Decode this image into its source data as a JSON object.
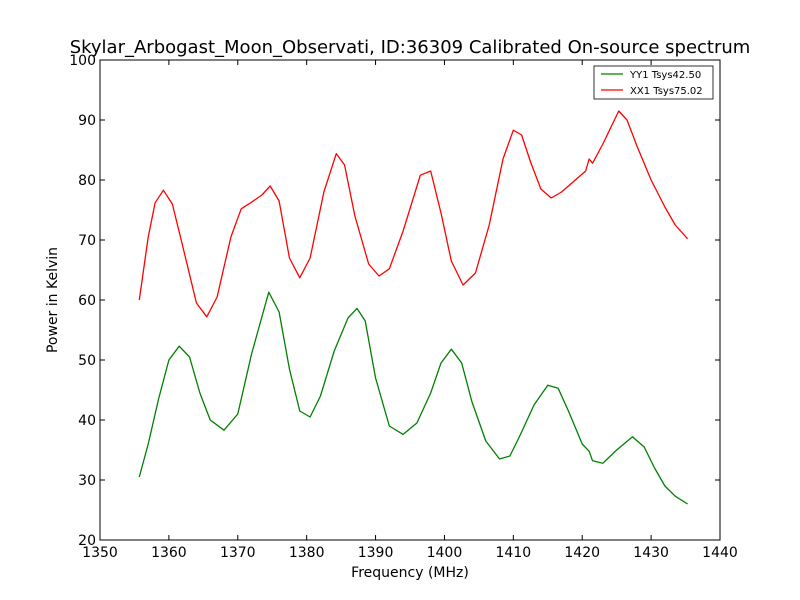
{
  "chart_data": {
    "type": "line",
    "title": "Skylar_Arbogast_Moon_Observati, ID:36309 Calibrated On-source spectrum",
    "xlabel": "Frequency (MHz)",
    "ylabel": "Power in Kelvin",
    "xlim": [
      1350,
      1440
    ],
    "ylim": [
      20,
      100
    ],
    "xticks": [
      1350,
      1360,
      1370,
      1380,
      1390,
      1400,
      1410,
      1420,
      1430,
      1440
    ],
    "yticks": [
      20,
      30,
      40,
      50,
      60,
      70,
      80,
      90,
      100
    ],
    "grid": false,
    "legend_position": "top-right",
    "series": [
      {
        "name": "YY1 Tsys42.50",
        "color": "#008000",
        "x": [
          1355.7,
          1357,
          1358.5,
          1360,
          1361.5,
          1363,
          1364.5,
          1366,
          1368,
          1370,
          1372,
          1374.5,
          1376,
          1377.5,
          1379,
          1380.5,
          1382,
          1384,
          1386,
          1387.3,
          1388.5,
          1390,
          1392,
          1394,
          1396,
          1398,
          1399.5,
          1401,
          1402.5,
          1404,
          1406,
          1408,
          1409.5,
          1411,
          1413,
          1415,
          1416.5,
          1418,
          1420,
          1421,
          1421.5,
          1423,
          1425,
          1427.3,
          1429,
          1430.5,
          1432,
          1433.5,
          1435.3
        ],
        "y": [
          30.5,
          36,
          43.5,
          50,
          52.3,
          50.5,
          44.5,
          40,
          38.3,
          41,
          51,
          61.3,
          58,
          48.5,
          41.5,
          40.5,
          44,
          51.5,
          57,
          58.6,
          56.5,
          47,
          39,
          37.6,
          39.5,
          44.5,
          49.5,
          51.8,
          49.5,
          43,
          36.5,
          33.5,
          34,
          37.5,
          42.5,
          45.8,
          45.3,
          41.5,
          36,
          34.8,
          33.2,
          32.8,
          35,
          37.2,
          35.5,
          32,
          29,
          27.3,
          26
        ]
      },
      {
        "name": "XX1 Tsys75.02",
        "color": "#ff0000",
        "x": [
          1355.7,
          1357,
          1358,
          1359.2,
          1360.5,
          1362,
          1364,
          1365.5,
          1367,
          1369,
          1370.5,
          1372,
          1373.5,
          1374.7,
          1376,
          1377.5,
          1379,
          1380.5,
          1382.5,
          1384.3,
          1385.5,
          1387,
          1389,
          1390.5,
          1392,
          1394,
          1396.5,
          1398,
          1399.5,
          1401,
          1402.7,
          1404.5,
          1406.5,
          1408.5,
          1410,
          1411.2,
          1412.5,
          1414,
          1415.5,
          1417,
          1419,
          1420.5,
          1421,
          1421.5,
          1423,
          1425.3,
          1426.5,
          1428,
          1430,
          1432,
          1433.5,
          1435.3
        ],
        "y": [
          60,
          70.5,
          76.2,
          78.3,
          76,
          69,
          59.5,
          57.2,
          60.5,
          70.5,
          75.2,
          76.3,
          77.5,
          79,
          76.5,
          67,
          63.7,
          67,
          78,
          84.4,
          82.5,
          74,
          66,
          64,
          65.2,
          71.5,
          80.8,
          81.5,
          74.5,
          66.5,
          62.5,
          64.5,
          72.5,
          83.5,
          88.3,
          87.5,
          83,
          78.5,
          77,
          78,
          80,
          81.5,
          83.5,
          82.8,
          86,
          91.5,
          90,
          85.5,
          80,
          75.5,
          72.5,
          70.2
        ]
      }
    ]
  }
}
